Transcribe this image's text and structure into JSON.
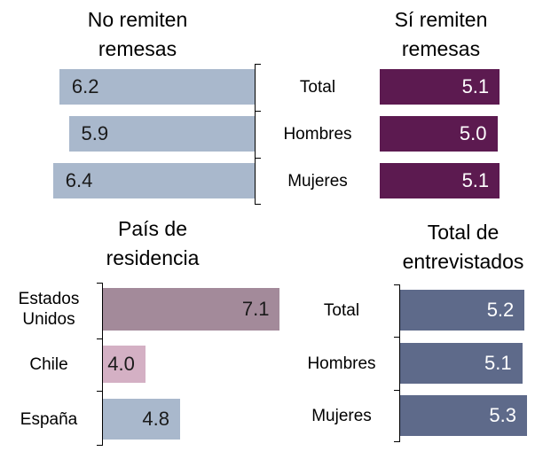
{
  "chart_data": [
    {
      "type": "bar",
      "title": "No remiten remesas",
      "values": [
        6.2,
        5.9,
        6.4
      ],
      "color": "#a9b8cc",
      "value_color": "#1a1a1a",
      "xlim": [
        0,
        8
      ],
      "direction": "left"
    },
    {
      "type": "bar",
      "title": "Sí remiten remesas",
      "categories": [
        "Total",
        "Hombres",
        "Mujeres"
      ],
      "values": [
        5.1,
        5.0,
        5.1
      ],
      "value_labels": [
        "5.1",
        "5.0",
        "5.1"
      ],
      "color": "#5c1a50",
      "value_color": "#ffffff",
      "xlim": [
        0,
        6
      ],
      "direction": "right"
    },
    {
      "type": "bar",
      "title": "País de residencia",
      "categories": [
        "Estados Unidos",
        "Chile",
        "España"
      ],
      "values": [
        7.1,
        4.0,
        4.8
      ],
      "value_labels": [
        "7.1",
        "4.0",
        "4.8"
      ],
      "colors": [
        "#a38a9a",
        "#d4b0c4",
        "#a9b8cc"
      ],
      "value_color": "#1a1a1a",
      "xlim": [
        3,
        7.5
      ],
      "direction": "right"
    },
    {
      "type": "bar",
      "title": "Total de entrevistados",
      "categories": [
        "Total",
        "Hombres",
        "Mujeres"
      ],
      "values": [
        5.2,
        5.1,
        5.3
      ],
      "color": "#5e6a8a",
      "value_color": "#ffffff",
      "xlim": [
        0,
        6
      ],
      "direction": "right"
    }
  ]
}
